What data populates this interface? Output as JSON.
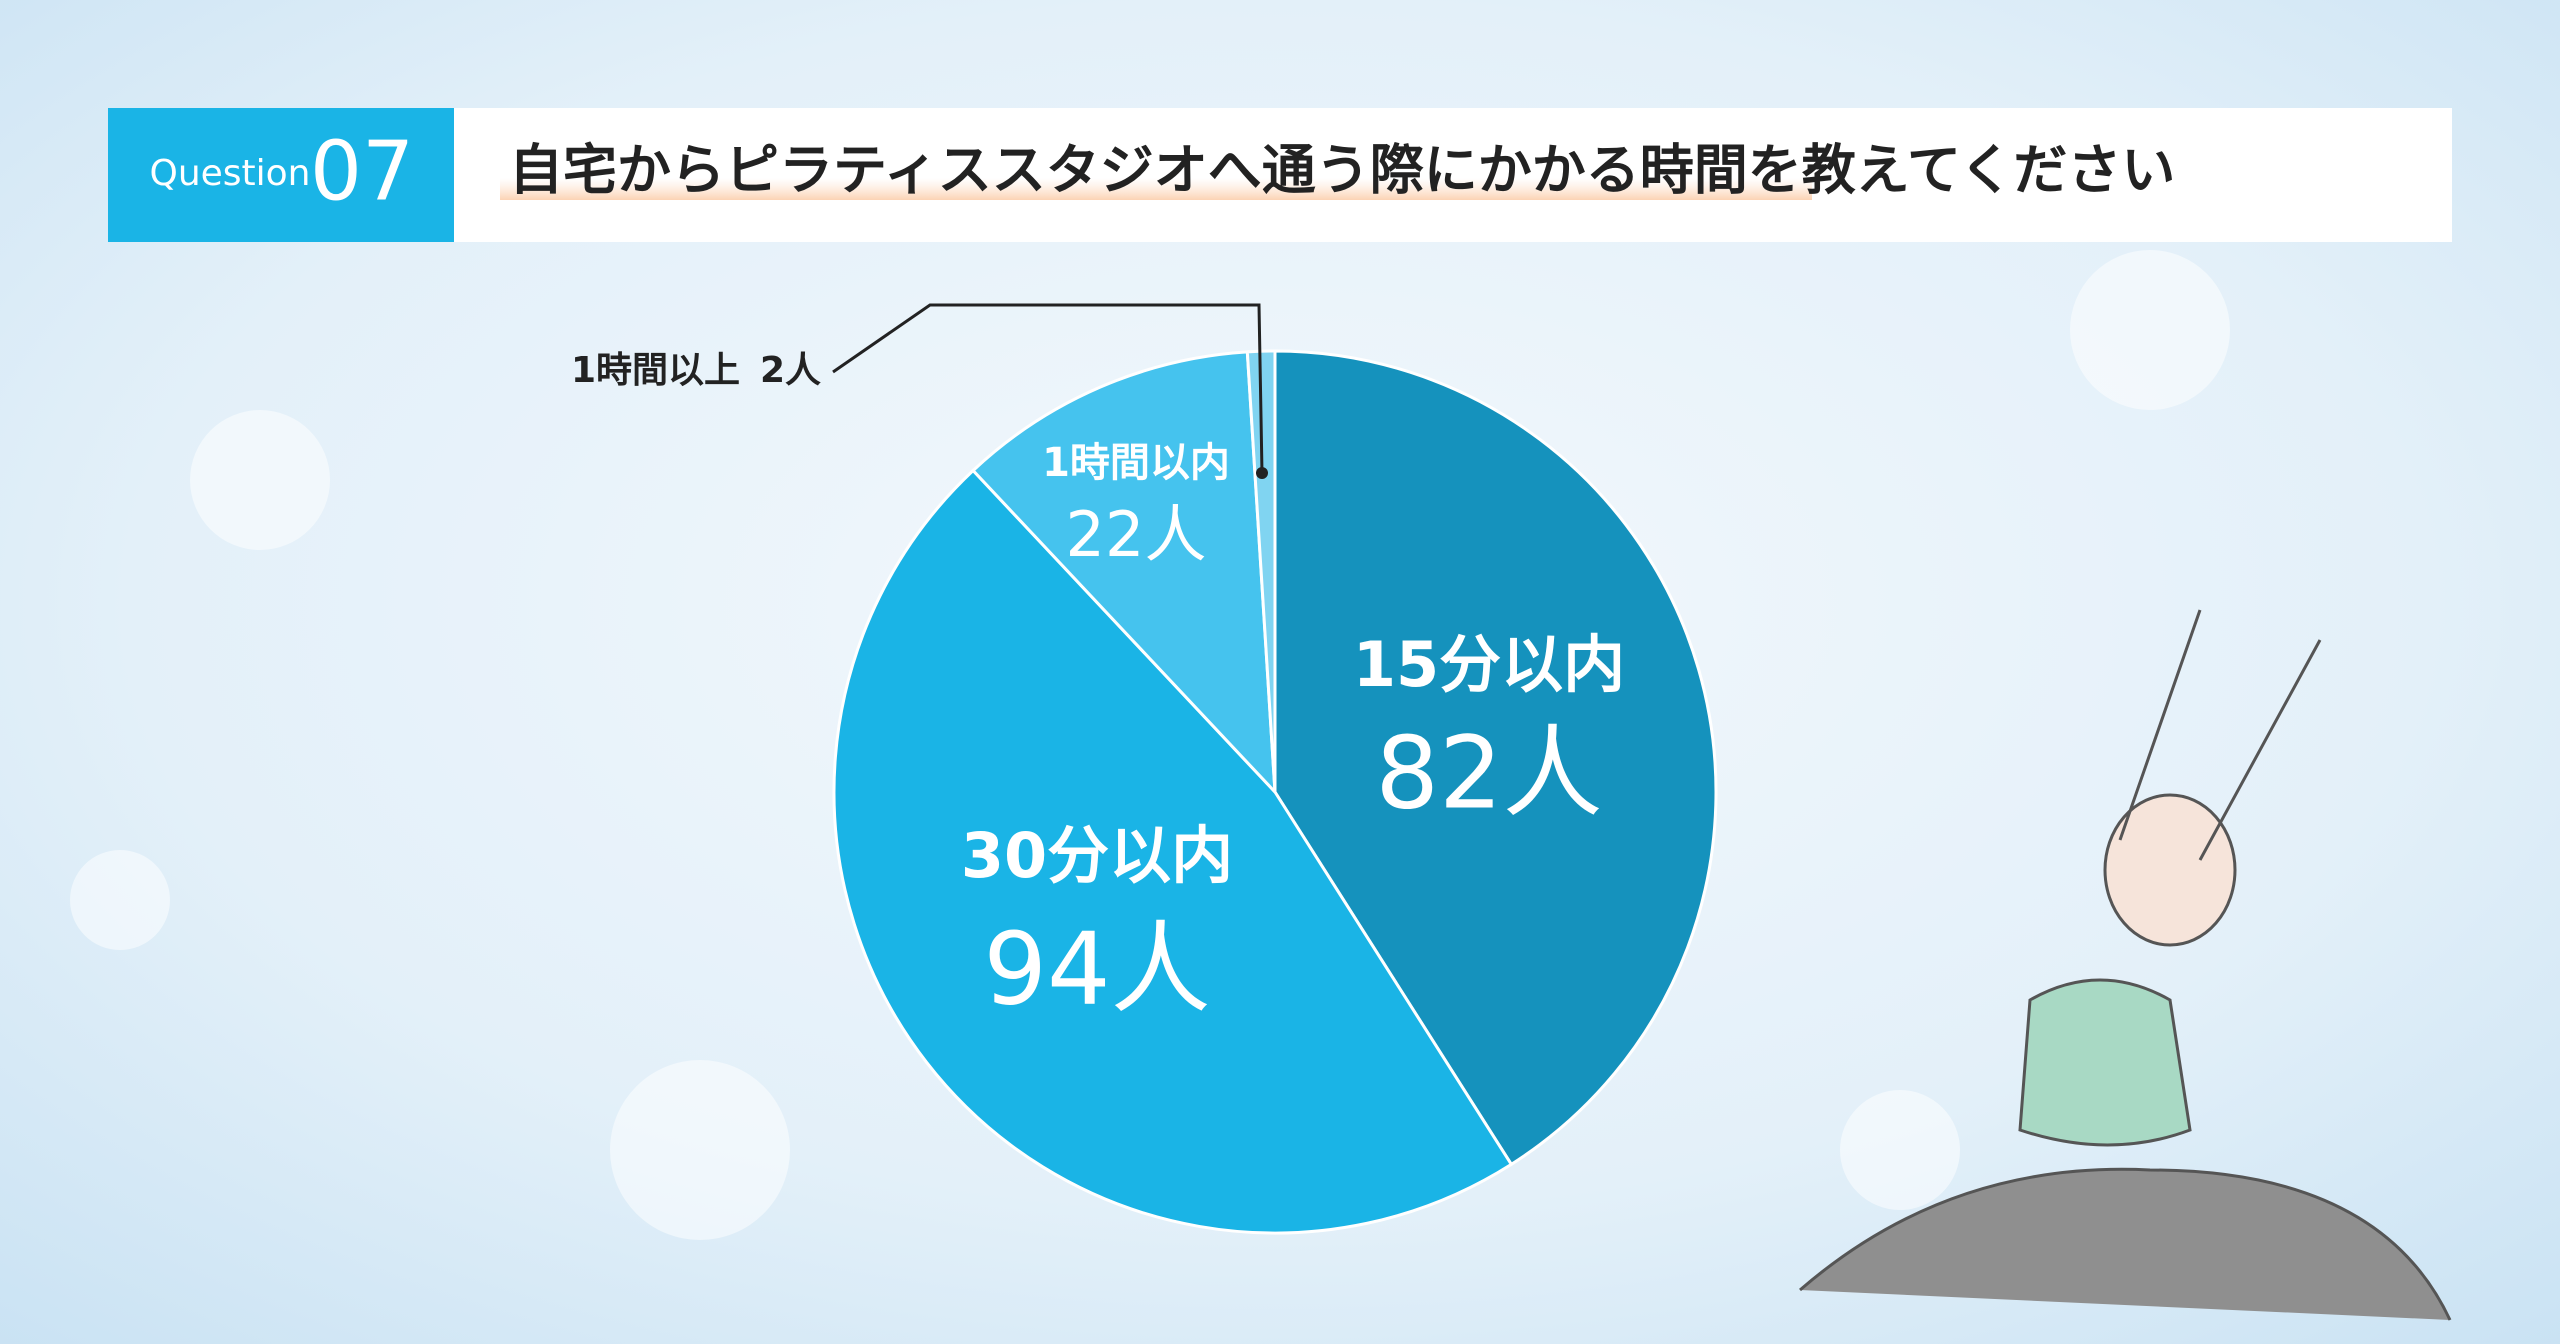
{
  "question_label": "Question",
  "question_number": "07",
  "chart_data": {
    "type": "pie",
    "title": "自宅からピラティススタジオへ通う際にかかる時間を教えてください",
    "categories": [
      "15分以内",
      "30分以内",
      "1時間以内",
      "1時間以上"
    ],
    "values": [
      82,
      94,
      22,
      2
    ],
    "value_labels": [
      "82人",
      "94人",
      "22人",
      "2人"
    ],
    "colors": [
      "#1592bd",
      "#1ab4e6",
      "#45c3ee",
      "#80d4f1"
    ]
  }
}
